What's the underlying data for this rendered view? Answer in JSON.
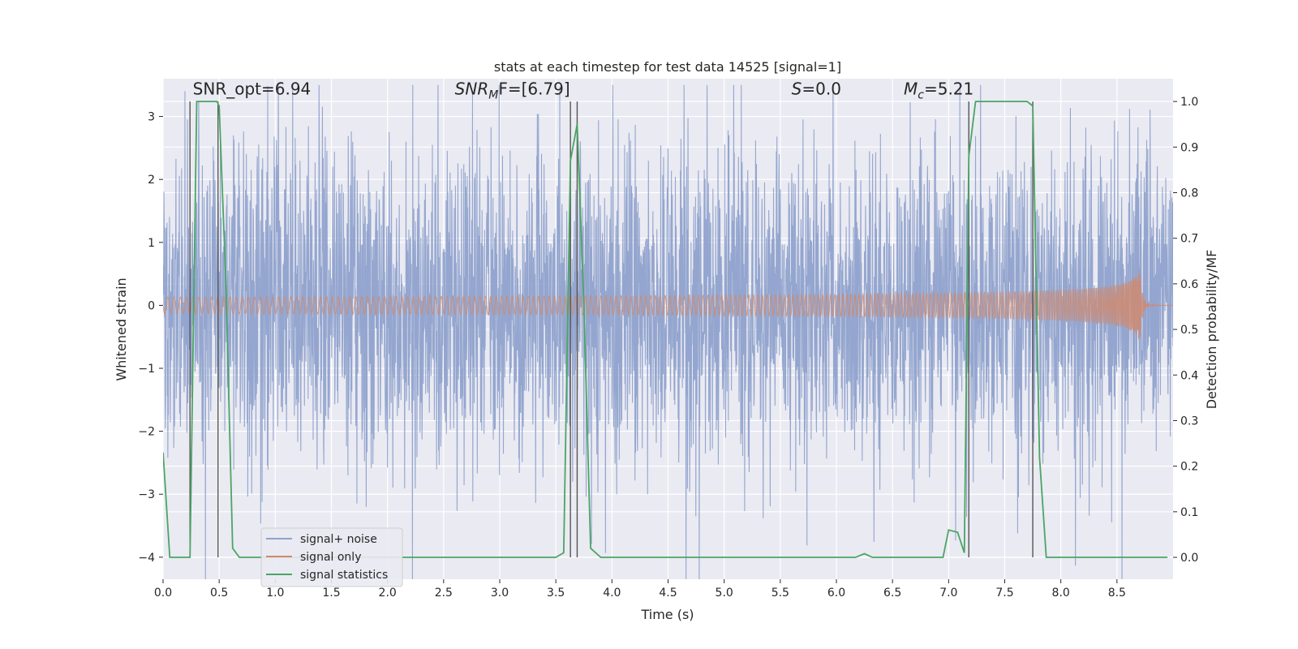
{
  "chart_data": {
    "type": "line",
    "title": "stats at each timestep for test data 14525 [signal=1]",
    "xlabel": "Time (s)",
    "ylabel": "Whitened strain",
    "ylabel_right": "Detection probability/MF",
    "xlim": [
      0.0,
      9.0
    ],
    "ylim": [
      -4.35,
      3.6
    ],
    "ylim_right": [
      -0.048,
      1.05
    ],
    "x_ticks": [
      0.0,
      0.5,
      1.0,
      1.5,
      2.0,
      2.5,
      3.0,
      3.5,
      4.0,
      4.5,
      5.0,
      5.5,
      6.0,
      6.5,
      7.0,
      7.5,
      8.0,
      8.5
    ],
    "x_tick_labels": [
      "0.0",
      "0.5",
      "1.0",
      "1.5",
      "2.0",
      "2.5",
      "3.0",
      "3.5",
      "4.0",
      "4.5",
      "5.0",
      "5.5",
      "6.0",
      "6.5",
      "7.0",
      "7.5",
      "8.0",
      "8.5"
    ],
    "y_ticks": [
      3,
      2,
      1,
      0,
      -1,
      -2,
      -3,
      -4
    ],
    "y_tick_labels": [
      "3",
      "2",
      "1",
      "0",
      "−1",
      "−2",
      "−3",
      "−4"
    ],
    "y_ticks_right": [
      1.0,
      0.9,
      0.8,
      0.7,
      0.6,
      0.5,
      0.4,
      0.3,
      0.2,
      0.1,
      0.0
    ],
    "y_tick_labels_right": [
      "1.0",
      "0.9",
      "0.8",
      "0.7",
      "0.6",
      "0.5",
      "0.4",
      "0.3",
      "0.2",
      "0.1",
      "0.0"
    ],
    "annotations": [
      {
        "text": "SNR_opt=6.94",
        "x": 0.2,
        "y": 3.35
      },
      {
        "text": "SNR_MF=[6.79]",
        "x": 2.6,
        "y": 3.35
      },
      {
        "text": "S=0.0",
        "x": 5.6,
        "y": 3.35
      },
      {
        "text": "M_c=5.21",
        "x": 6.6,
        "y": 3.35
      }
    ],
    "vertical_lines": [
      0.24,
      0.49,
      3.63,
      3.69,
      7.18,
      7.75
    ],
    "series": [
      {
        "name": "signal+ noise",
        "color": "#8fa2cc",
        "style": "noise",
        "envelope_typical": 1.3,
        "envelope_peak": 3.3
      },
      {
        "name": "signal only",
        "color": "#d1886a",
        "style": "chirp",
        "merger_time": 8.7,
        "peak_amplitude": 0.65
      },
      {
        "name": "signal statistics",
        "color": "#4aa564",
        "style": "line",
        "axis": "right",
        "x": [
          0.0,
          0.06,
          0.1,
          0.24,
          0.3,
          0.36,
          0.42,
          0.48,
          0.5,
          0.56,
          0.62,
          0.68,
          0.74,
          1.0,
          2.0,
          3.0,
          3.5,
          3.57,
          3.63,
          3.69,
          3.75,
          3.81,
          3.9,
          4.5,
          5.0,
          6.0,
          6.17,
          6.25,
          6.32,
          6.5,
          6.7,
          6.95,
          7.0,
          7.08,
          7.14,
          7.18,
          7.24,
          7.3,
          7.5,
          7.7,
          7.75,
          7.81,
          7.87,
          7.93,
          8.0,
          8.5,
          8.95
        ],
        "y": [
          0.23,
          0.0,
          0.0,
          0.0,
          1.0,
          1.0,
          1.0,
          1.0,
          0.99,
          0.6,
          0.02,
          0.0,
          0.0,
          0.0,
          0.0,
          0.0,
          0.0,
          0.01,
          0.87,
          0.95,
          0.55,
          0.02,
          0.0,
          0.0,
          0.0,
          0.0,
          0.0,
          0.008,
          0.0,
          0.0,
          0.0,
          0.0,
          0.06,
          0.055,
          0.01,
          0.88,
          1.0,
          1.0,
          1.0,
          1.0,
          0.99,
          0.22,
          0.0,
          0.0,
          0.0,
          0.0,
          0.0
        ]
      }
    ],
    "legend": {
      "location": "lower-left",
      "entries": [
        "signal+ noise",
        "signal only",
        "signal statistics"
      ]
    },
    "grid": true
  }
}
